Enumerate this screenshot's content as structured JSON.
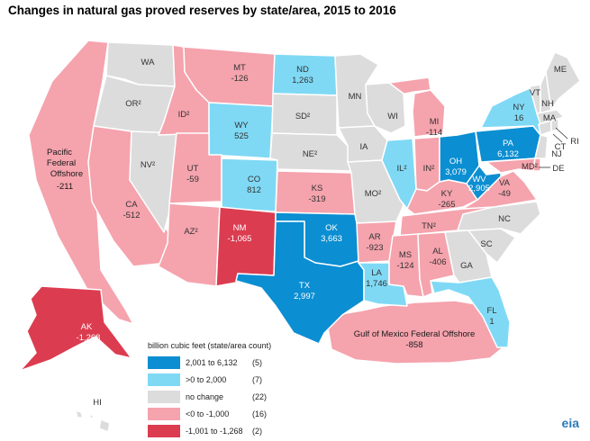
{
  "title": "Changes in natural gas proved reserves by state/area, 2015 to 2016",
  "colors": {
    "dark_blue": "#0b8ed2",
    "light_blue": "#7fd9f5",
    "gray": "#dcdcdc",
    "pink": "#f5a3ad",
    "red": "#dc3c50"
  },
  "legend": {
    "title": "billion cubic feet (state/area count)",
    "items": [
      {
        "label": "2,001 to 6,132",
        "count": "(5)",
        "color": "#0b8ed2"
      },
      {
        "label": ">0 to 2,000",
        "count": "(7)",
        "color": "#7fd9f5"
      },
      {
        "label": "no change",
        "count": "(22)",
        "color": "#dcdcdc"
      },
      {
        "label": "<0 to -1,000",
        "count": "(16)",
        "color": "#f5a3ad"
      },
      {
        "label": "-1,001 to -1,268",
        "count": "(2)",
        "color": "#dc3c50"
      }
    ]
  },
  "labels": {
    "pacific": [
      "Pacific",
      "Federal",
      "Offshore",
      "-211"
    ],
    "wa": "WA",
    "or": "OR²",
    "ca": [
      "CA",
      "-512"
    ],
    "nv": "NV²",
    "id": "ID²",
    "mt": [
      "MT",
      "-126"
    ],
    "wy": [
      "WY",
      "525"
    ],
    "ut": [
      "UT",
      "-59"
    ],
    "az": "AZ²",
    "co": [
      "CO",
      "812"
    ],
    "nm": [
      "NM",
      "-1,065"
    ],
    "nd": [
      "ND",
      "1,263"
    ],
    "sd": "SD²",
    "ne": "NE²",
    "ks": [
      "KS",
      "-319"
    ],
    "ok": [
      "OK",
      "3,663"
    ],
    "tx": [
      "TX",
      "2,997"
    ],
    "mn": "MN",
    "ia": "IA",
    "mo": "MO²",
    "ar": [
      "AR",
      "-923"
    ],
    "la": [
      "LA",
      "1,746"
    ],
    "wi": "WI",
    "il": "IL²",
    "mi": [
      "MI",
      "-114"
    ],
    "in": "IN²",
    "oh": [
      "OH",
      "3,079"
    ],
    "ky": [
      "KY",
      "-265"
    ],
    "tn": "TN²",
    "ms": [
      "MS",
      "-124"
    ],
    "al": [
      "AL",
      "-406"
    ],
    "ga": "GA",
    "fl": [
      "FL",
      "1"
    ],
    "sc": "SC",
    "nc": "NC",
    "va": [
      "VA",
      "-49"
    ],
    "wv": [
      "WV",
      "2,905"
    ],
    "pa": [
      "PA",
      "6,132"
    ],
    "ny": [
      "NY",
      "16"
    ],
    "md": "MD²",
    "de": "DE",
    "nj": "NJ",
    "ct": "CT",
    "ri": "RI",
    "ma": "MA",
    "vt": "VT",
    "nh": "NH",
    "me": "ME",
    "ak": [
      "AK",
      "-1,268"
    ],
    "hi": "HI",
    "gom": [
      "Gulf of Mexico Federal Offshore",
      "-858"
    ]
  },
  "logo": "eia"
}
